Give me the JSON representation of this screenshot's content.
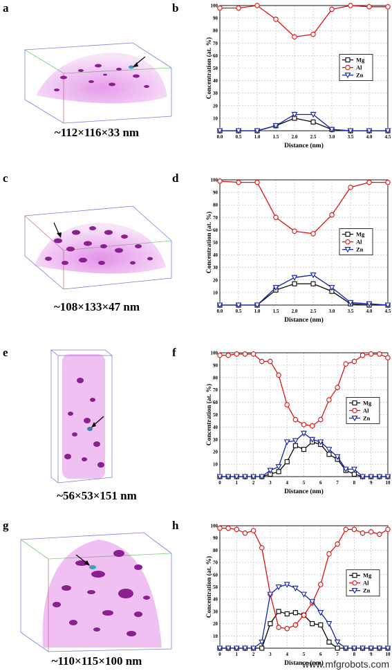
{
  "panels": [
    {
      "letter": "a",
      "dims": "~112×116×33 nm"
    },
    {
      "letter": "c",
      "dims": "~108×133×47 nm"
    },
    {
      "letter": "e",
      "dims": "~56×53×151 nm"
    },
    {
      "letter": "g",
      "dims": "~110×115×100 nm"
    }
  ],
  "watermark": "www.mfgrobots.com",
  "colors": {
    "mg": "#000000",
    "al": "#dd1111",
    "zn": "#1122aa",
    "atom": "#d04ad8",
    "precip": "#8a1f90",
    "grid": "#bbbbbb"
  },
  "chart_data": [
    {
      "letter": "b",
      "type": "line",
      "xlabel": "Distance (nm)",
      "ylabel": "Concentration (at. %)",
      "xlim": [
        0,
        4.5
      ],
      "ylim": [
        0,
        100
      ],
      "xticks": [
        "0.0",
        "0.5",
        "1.0",
        "1.5",
        "2.0",
        "2.5",
        "3.0",
        "3.5",
        "4.0",
        "4.5"
      ],
      "yticks": [
        "10",
        "20",
        "30",
        "40",
        "50",
        "60",
        "70",
        "80",
        "90",
        "100"
      ],
      "legend": "center-right",
      "x": [
        0,
        0.5,
        1.0,
        1.5,
        2.0,
        2.5,
        3.0,
        3.5,
        4.0,
        4.5
      ],
      "series": [
        {
          "name": "Mg",
          "values": [
            0,
            0,
            0,
            4,
            10,
            7,
            1,
            0,
            0,
            0
          ]
        },
        {
          "name": "Al",
          "values": [
            98,
            98,
            100,
            89,
            75,
            77,
            97,
            100,
            99,
            99
          ]
        },
        {
          "name": "Zn",
          "values": [
            0,
            0,
            0,
            4,
            13,
            13,
            1,
            0,
            0,
            0
          ]
        }
      ]
    },
    {
      "letter": "d",
      "type": "line",
      "xlabel": "Distance (nm)",
      "ylabel": "Concentration (at. %)",
      "xlim": [
        0,
        4.5
      ],
      "ylim": [
        0,
        100
      ],
      "xticks": [
        "0.0",
        "0.5",
        "1.0",
        "1.5",
        "2.0",
        "2.5",
        "3.0",
        "3.5",
        "4.0",
        "4.5"
      ],
      "yticks": [
        "10",
        "20",
        "30",
        "40",
        "50",
        "60",
        "70",
        "80",
        "90",
        "100"
      ],
      "legend": "center-right",
      "x": [
        0,
        0.5,
        1.0,
        1.5,
        2.0,
        2.5,
        3.0,
        3.5,
        4.0,
        4.5
      ],
      "series": [
        {
          "name": "Mg",
          "values": [
            0,
            0,
            0,
            12,
            17,
            17,
            11,
            1,
            0,
            0
          ]
        },
        {
          "name": "Al",
          "values": [
            99,
            98,
            98,
            70,
            59,
            57,
            72,
            94,
            98,
            98
          ]
        },
        {
          "name": "Zn",
          "values": [
            0,
            0,
            0,
            14,
            22,
            24,
            14,
            2,
            1,
            0
          ]
        }
      ]
    },
    {
      "letter": "f",
      "type": "line",
      "xlabel": "Distance (nm)",
      "ylabel": "Concentration (at. %)",
      "xlim": [
        0,
        10
      ],
      "ylim": [
        0,
        100
      ],
      "xticks": [
        "0",
        "1",
        "2",
        "3",
        "4",
        "5",
        "6",
        "7",
        "8",
        "9",
        "10"
      ],
      "yticks": [
        "10",
        "20",
        "30",
        "40",
        "50",
        "60",
        "70",
        "80",
        "90",
        "100"
      ],
      "legend": "right",
      "x": [
        0,
        0.5,
        1,
        1.5,
        2,
        2.5,
        3,
        3.5,
        4,
        4.5,
        5,
        5.5,
        6,
        6.5,
        7,
        7.5,
        8,
        8.5,
        9,
        9.5,
        10
      ],
      "series": [
        {
          "name": "Mg",
          "values": [
            0,
            0,
            0,
            0,
            0,
            0,
            2,
            4,
            12,
            25,
            22,
            28,
            26,
            18,
            14,
            5,
            2,
            0,
            0,
            0,
            0
          ]
        },
        {
          "name": "Al",
          "values": [
            98,
            98,
            99,
            99,
            99,
            93,
            93,
            82,
            58,
            46,
            42,
            41,
            46,
            62,
            72,
            91,
            93,
            98,
            99,
            99,
            96
          ]
        },
        {
          "name": "Zn",
          "values": [
            0,
            0,
            0,
            0,
            0,
            0,
            5,
            8,
            28,
            29,
            35,
            30,
            28,
            22,
            16,
            6,
            6,
            0,
            0,
            0,
            0
          ]
        }
      ]
    },
    {
      "letter": "h",
      "type": "line",
      "xlabel": "Distance (nm)",
      "ylabel": "Concentration (at. %)",
      "xlim": [
        0,
        10
      ],
      "ylim": [
        0,
        100
      ],
      "xticks": [
        "0",
        "1",
        "2",
        "3",
        "4",
        "5",
        "6",
        "7",
        "8",
        "9",
        "10"
      ],
      "yticks": [
        "10",
        "20",
        "30",
        "40",
        "50",
        "60",
        "70",
        "80",
        "90",
        "100"
      ],
      "legend": "right",
      "x": [
        0,
        0.5,
        1,
        1.5,
        2,
        2.5,
        3,
        3.5,
        4,
        4.5,
        5,
        5.5,
        6,
        6.5,
        7,
        7.5,
        8,
        8.5,
        9,
        9.5,
        10
      ],
      "series": [
        {
          "name": "Mg",
          "values": [
            0,
            0,
            0,
            0,
            0,
            0,
            20,
            30,
            28,
            29,
            27,
            20,
            19,
            5,
            0,
            0,
            0,
            0,
            0,
            0,
            0
          ]
        },
        {
          "name": "Al",
          "values": [
            98,
            98,
            97,
            94,
            96,
            82,
            44,
            17,
            16,
            19,
            27,
            37,
            52,
            77,
            85,
            97,
            97,
            94,
            95,
            93,
            97
          ]
        },
        {
          "name": "Zn",
          "values": [
            0,
            0,
            0,
            0,
            0,
            5,
            44,
            50,
            52,
            49,
            44,
            38,
            29,
            20,
            5,
            0,
            0,
            0,
            0,
            0,
            0
          ]
        }
      ]
    }
  ]
}
